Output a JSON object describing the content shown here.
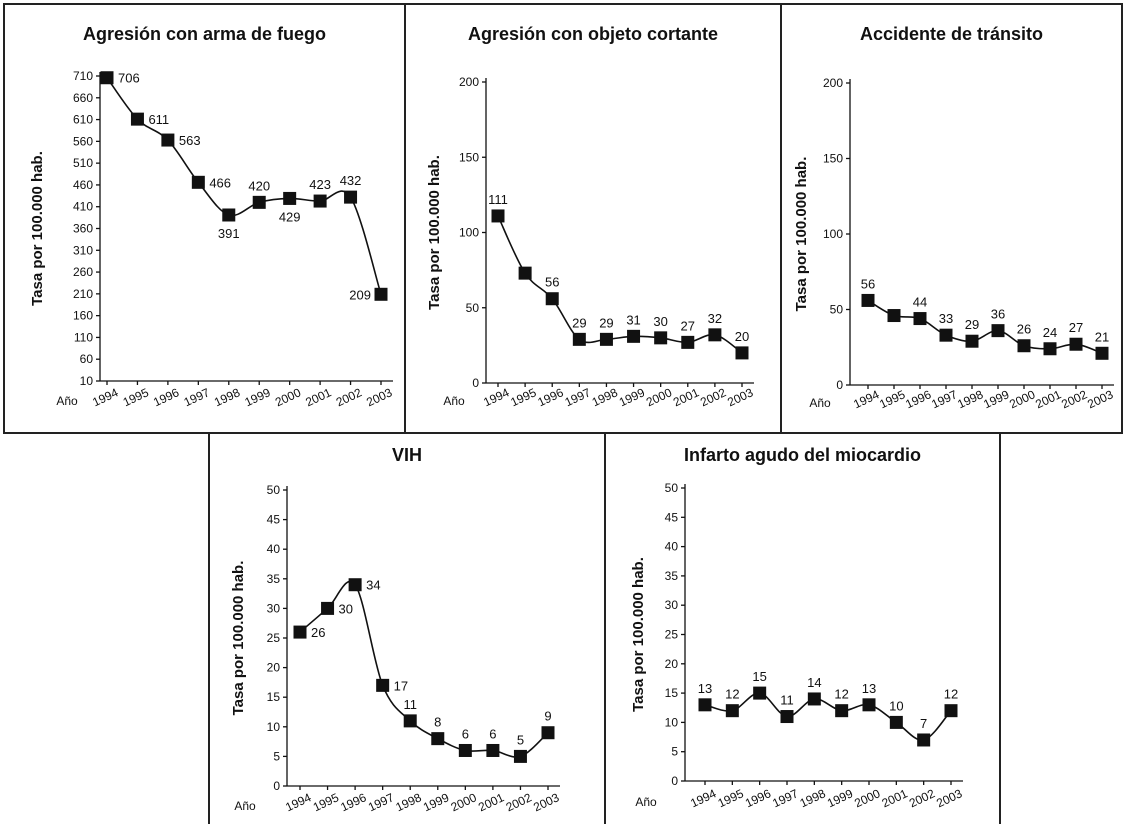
{
  "chart_data": [
    {
      "type": "line",
      "title": "Agresión con arma de fuego",
      "ylabel": "Tasa por 100.000 hab.",
      "xlabel": "Año",
      "x": [
        "1994",
        "1995",
        "1996",
        "1997",
        "1998",
        "1999",
        "2000",
        "2001",
        "2002",
        "2003"
      ],
      "values": [
        706,
        611,
        563,
        466,
        391,
        420,
        429,
        423,
        432,
        209
      ],
      "ylim": [
        10,
        710
      ],
      "yticks": [
        10,
        60,
        110,
        160,
        210,
        260,
        310,
        360,
        410,
        460,
        510,
        560,
        610,
        660,
        710
      ],
      "grid": false
    },
    {
      "type": "line",
      "title": "Agresión con objeto cortante",
      "ylabel": "Tasa por 100.000 hab.",
      "xlabel": "Año",
      "x": [
        "1994",
        "1995",
        "1996",
        "1997",
        "1998",
        "1999",
        "2000",
        "2001",
        "2002",
        "2003"
      ],
      "values": [
        111,
        73,
        56,
        29,
        29,
        31,
        30,
        27,
        32,
        20
      ],
      "labels": [
        "111",
        "",
        "56",
        "29",
        "29",
        "31",
        "30",
        "27",
        "32",
        "20"
      ],
      "ylim": [
        0,
        200
      ],
      "yticks": [
        0,
        50,
        100,
        150,
        200
      ],
      "grid": false
    },
    {
      "type": "line",
      "title": "Accidente de tránsito",
      "ylabel": "Tasa por 100.000 hab.",
      "xlabel": "Año",
      "x": [
        "1994",
        "1995",
        "1996",
        "1997",
        "1998",
        "1999",
        "2000",
        "2001",
        "2002",
        "2003"
      ],
      "values": [
        56,
        46,
        44,
        33,
        29,
        36,
        26,
        24,
        27,
        21
      ],
      "labels": [
        "56",
        "",
        "44",
        "33",
        "29",
        "36",
        "26",
        "24",
        "27",
        "21"
      ],
      "ylim": [
        0,
        200
      ],
      "yticks": [
        0,
        50,
        100,
        150,
        200
      ],
      "grid": false
    },
    {
      "type": "line",
      "title": "VIH",
      "ylabel": "Tasa por 100.000 hab.",
      "xlabel": "Año",
      "x": [
        "1994",
        "1995",
        "1996",
        "1997",
        "1998",
        "1999",
        "2000",
        "2001",
        "2002",
        "2003"
      ],
      "values": [
        26,
        30,
        34,
        17,
        11,
        8,
        6,
        6,
        5,
        9
      ],
      "ylim": [
        0,
        50
      ],
      "yticks": [
        0,
        5,
        10,
        15,
        20,
        25,
        30,
        35,
        40,
        45,
        50
      ],
      "grid": false
    },
    {
      "type": "line",
      "title": "Infarto agudo del miocardio",
      "ylabel": "Tasa por 100.000 hab.",
      "xlabel": "Año",
      "x": [
        "1994",
        "1995",
        "1996",
        "1997",
        "1998",
        "1999",
        "2000",
        "2001",
        "2002",
        "2003"
      ],
      "values": [
        13,
        12,
        15,
        11,
        14,
        12,
        13,
        10,
        7,
        12
      ],
      "ylim": [
        0,
        50
      ],
      "yticks": [
        0,
        5,
        10,
        15,
        20,
        25,
        30,
        35,
        40,
        45,
        50
      ],
      "grid": false
    }
  ]
}
